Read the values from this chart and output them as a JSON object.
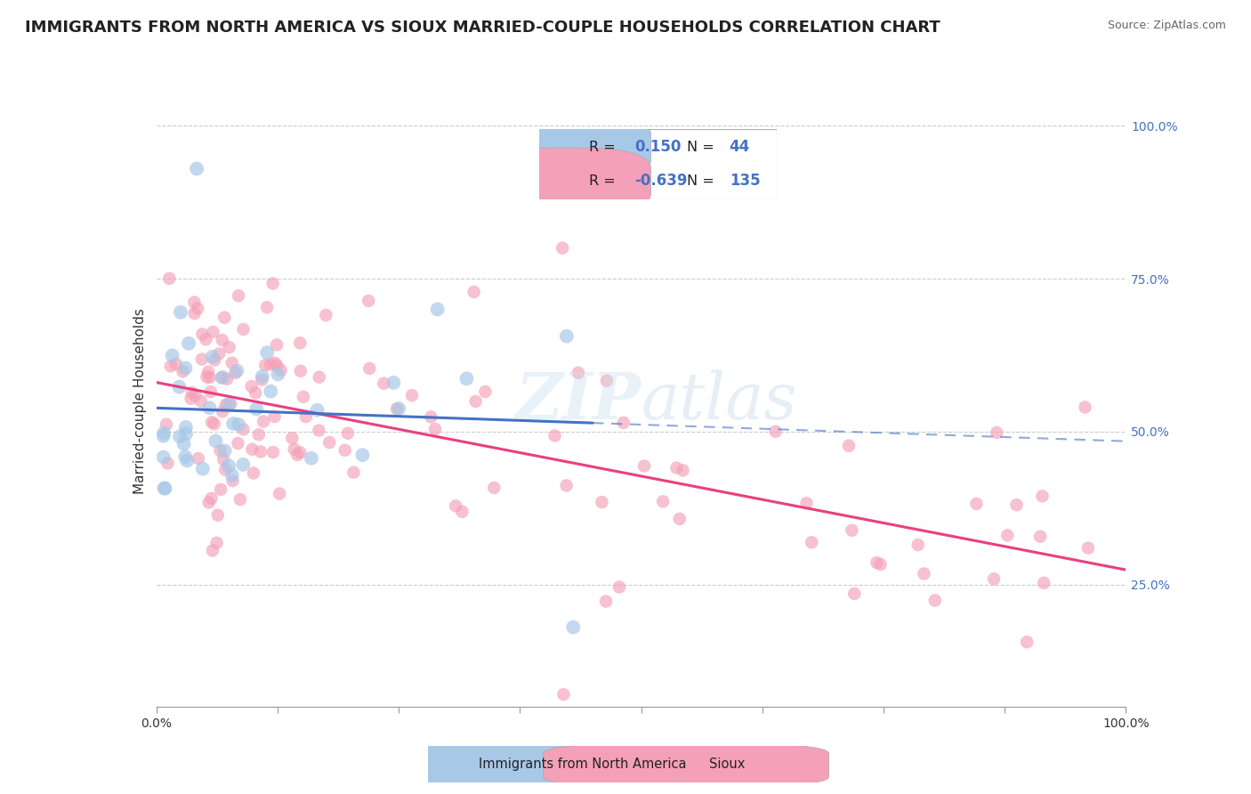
{
  "title": "IMMIGRANTS FROM NORTH AMERICA VS SIOUX MARRIED-COUPLE HOUSEHOLDS CORRELATION CHART",
  "source": "Source: ZipAtlas.com",
  "ylabel": "Married-couple Households",
  "watermark": "ZIPatlas",
  "blue_color": "#a8c8e8",
  "blue_line_color": "#4472c4",
  "pink_color": "#f4a0b8",
  "pink_line_color": "#e84080",
  "grid_color": "#cccccc",
  "bg_color": "#ffffff",
  "right_tick_color": "#4472c4",
  "title_fontsize": 13,
  "label_fontsize": 11,
  "tick_fontsize": 10,
  "legend_R1": "0.150",
  "legend_N1": "44",
  "legend_R2": "-0.639",
  "legend_N2": "135",
  "legend_label1": "Immigrants from North America",
  "legend_label2": "Sioux"
}
